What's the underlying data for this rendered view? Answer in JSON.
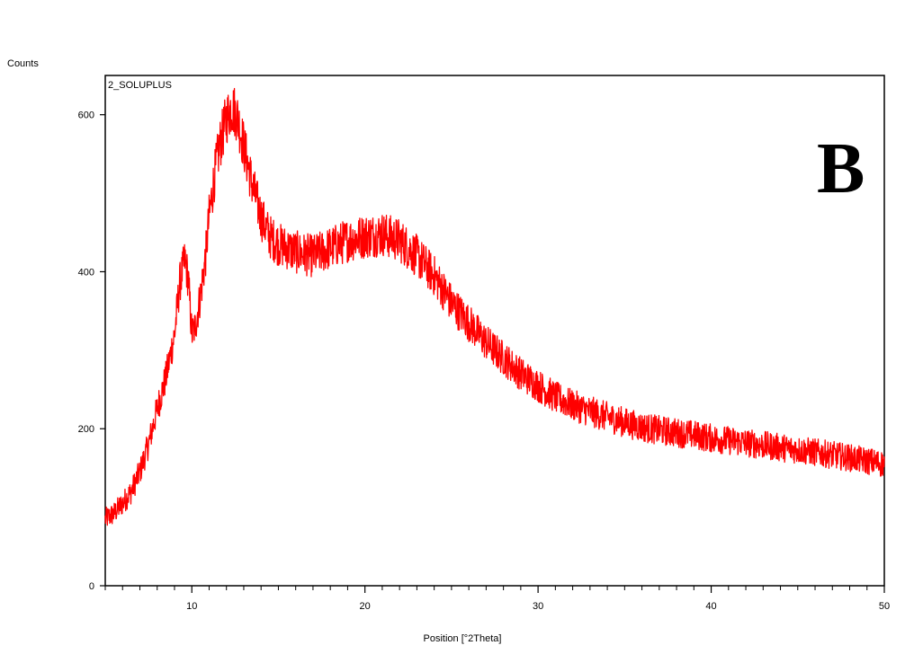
{
  "chart_data": {
    "type": "line",
    "sample_label": "2_SOLUPLUS",
    "panel_label": "B",
    "ylabel": "Counts",
    "xlabel": "Position [°2Theta]",
    "xlim": [
      5,
      50
    ],
    "ylim": [
      0,
      650
    ],
    "xticks": [
      10,
      20,
      30,
      40,
      50
    ],
    "yticks": [
      0,
      200,
      400,
      600
    ],
    "grid": false,
    "series": [
      {
        "color": "#ff0000",
        "noise_amplitude": 25,
        "x": [
          5,
          5.5,
          6,
          6.5,
          7,
          7.5,
          8,
          8.5,
          9,
          9.3,
          9.6,
          9.8,
          10,
          10.2,
          10.5,
          10.8,
          11,
          11.3,
          11.6,
          12,
          12.3,
          12.6,
          13,
          13.5,
          14,
          14.5,
          15,
          16,
          17,
          18,
          19,
          20,
          21,
          22,
          23,
          24,
          25,
          26,
          27,
          28,
          29,
          30,
          31,
          32,
          33,
          34,
          35,
          36,
          37,
          38,
          39,
          40,
          42,
          44,
          46,
          48,
          50
        ],
        "y": [
          85,
          92,
          105,
          120,
          145,
          180,
          225,
          265,
          320,
          385,
          415,
          390,
          320,
          330,
          370,
          420,
          470,
          520,
          560,
          595,
          610,
          600,
          560,
          510,
          470,
          445,
          435,
          425,
          420,
          430,
          440,
          445,
          448,
          440,
          420,
          395,
          360,
          335,
          310,
          290,
          270,
          255,
          240,
          230,
          222,
          215,
          208,
          202,
          198,
          195,
          192,
          188,
          182,
          176,
          170,
          163,
          155
        ]
      }
    ]
  }
}
